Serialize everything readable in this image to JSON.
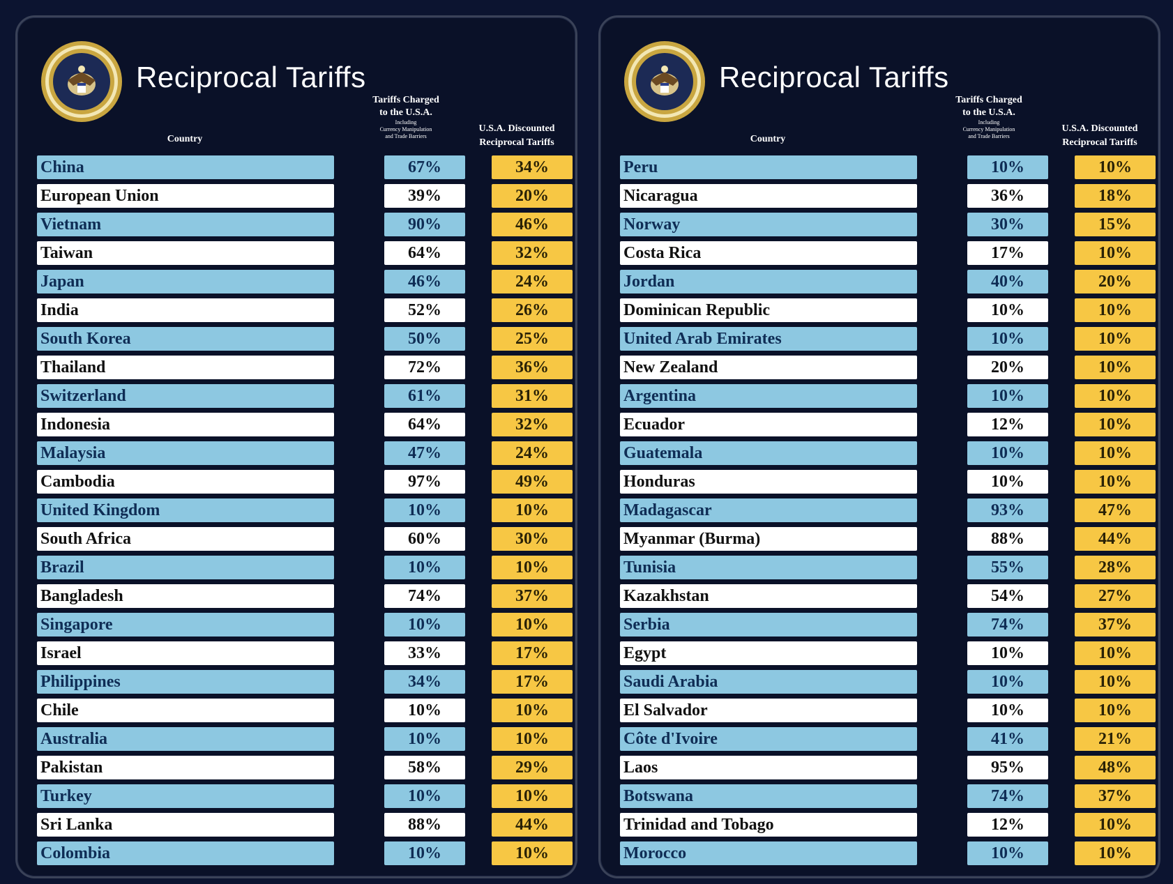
{
  "colors": {
    "background": "#0c1430",
    "row_blue": "#8dc8e1",
    "row_white": "#ffffff",
    "discount": "#f7c744"
  },
  "icons": {
    "seal": "presidential-seal-icon"
  },
  "panels": [
    {
      "title": "Reciprocal Tariffs",
      "headers": {
        "country": "Country",
        "charged_line1": "Tariffs Charged",
        "charged_line2": "to the U.S.A.",
        "charged_line3": "Including",
        "charged_line4": "Currency Manipulation",
        "charged_line5": "and Trade Barriers",
        "discount_line1": "U.S.A. Discounted",
        "discount_line2": "Reciprocal Tariffs"
      },
      "rows": [
        {
          "country": "China",
          "charged": "67%",
          "discounted": "34%"
        },
        {
          "country": "European Union",
          "charged": "39%",
          "discounted": "20%"
        },
        {
          "country": "Vietnam",
          "charged": "90%",
          "discounted": "46%"
        },
        {
          "country": "Taiwan",
          "charged": "64%",
          "discounted": "32%"
        },
        {
          "country": "Japan",
          "charged": "46%",
          "discounted": "24%"
        },
        {
          "country": "India",
          "charged": "52%",
          "discounted": "26%"
        },
        {
          "country": "South Korea",
          "charged": "50%",
          "discounted": "25%"
        },
        {
          "country": "Thailand",
          "charged": "72%",
          "discounted": "36%"
        },
        {
          "country": "Switzerland",
          "charged": "61%",
          "discounted": "31%"
        },
        {
          "country": "Indonesia",
          "charged": "64%",
          "discounted": "32%"
        },
        {
          "country": "Malaysia",
          "charged": "47%",
          "discounted": "24%"
        },
        {
          "country": "Cambodia",
          "charged": "97%",
          "discounted": "49%"
        },
        {
          "country": "United Kingdom",
          "charged": "10%",
          "discounted": "10%"
        },
        {
          "country": "South Africa",
          "charged": "60%",
          "discounted": "30%"
        },
        {
          "country": "Brazil",
          "charged": "10%",
          "discounted": "10%"
        },
        {
          "country": "Bangladesh",
          "charged": "74%",
          "discounted": "37%"
        },
        {
          "country": "Singapore",
          "charged": "10%",
          "discounted": "10%"
        },
        {
          "country": "Israel",
          "charged": "33%",
          "discounted": "17%"
        },
        {
          "country": "Philippines",
          "charged": "34%",
          "discounted": "17%"
        },
        {
          "country": "Chile",
          "charged": "10%",
          "discounted": "10%"
        },
        {
          "country": "Australia",
          "charged": "10%",
          "discounted": "10%"
        },
        {
          "country": "Pakistan",
          "charged": "58%",
          "discounted": "29%"
        },
        {
          "country": "Turkey",
          "charged": "10%",
          "discounted": "10%"
        },
        {
          "country": "Sri Lanka",
          "charged": "88%",
          "discounted": "44%"
        },
        {
          "country": "Colombia",
          "charged": "10%",
          "discounted": "10%"
        }
      ]
    },
    {
      "title": "Reciprocal Tariffs",
      "headers": {
        "country": "Country",
        "charged_line1": "Tariffs Charged",
        "charged_line2": "to the U.S.A.",
        "charged_line3": "Including",
        "charged_line4": "Currency Manipulation",
        "charged_line5": "and Trade Barriers",
        "discount_line1": "U.S.A. Discounted",
        "discount_line2": "Reciprocal Tariffs"
      },
      "rows": [
        {
          "country": "Peru",
          "charged": "10%",
          "discounted": "10%"
        },
        {
          "country": "Nicaragua",
          "charged": "36%",
          "discounted": "18%"
        },
        {
          "country": "Norway",
          "charged": "30%",
          "discounted": "15%"
        },
        {
          "country": "Costa Rica",
          "charged": "17%",
          "discounted": "10%"
        },
        {
          "country": "Jordan",
          "charged": "40%",
          "discounted": "20%"
        },
        {
          "country": "Dominican Republic",
          "charged": "10%",
          "discounted": "10%"
        },
        {
          "country": "United Arab Emirates",
          "charged": "10%",
          "discounted": "10%"
        },
        {
          "country": "New Zealand",
          "charged": "20%",
          "discounted": "10%"
        },
        {
          "country": "Argentina",
          "charged": "10%",
          "discounted": "10%"
        },
        {
          "country": "Ecuador",
          "charged": "12%",
          "discounted": "10%"
        },
        {
          "country": "Guatemala",
          "charged": "10%",
          "discounted": "10%"
        },
        {
          "country": "Honduras",
          "charged": "10%",
          "discounted": "10%"
        },
        {
          "country": "Madagascar",
          "charged": "93%",
          "discounted": "47%"
        },
        {
          "country": "Myanmar (Burma)",
          "charged": "88%",
          "discounted": "44%"
        },
        {
          "country": "Tunisia",
          "charged": "55%",
          "discounted": "28%"
        },
        {
          "country": "Kazakhstan",
          "charged": "54%",
          "discounted": "27%"
        },
        {
          "country": "Serbia",
          "charged": "74%",
          "discounted": "37%"
        },
        {
          "country": "Egypt",
          "charged": "10%",
          "discounted": "10%"
        },
        {
          "country": "Saudi Arabia",
          "charged": "10%",
          "discounted": "10%"
        },
        {
          "country": "El Salvador",
          "charged": "10%",
          "discounted": "10%"
        },
        {
          "country": "Côte d'Ivoire",
          "charged": "41%",
          "discounted": "21%"
        },
        {
          "country": "Laos",
          "charged": "95%",
          "discounted": "48%"
        },
        {
          "country": "Botswana",
          "charged": "74%",
          "discounted": "37%"
        },
        {
          "country": "Trinidad and Tobago",
          "charged": "12%",
          "discounted": "10%"
        },
        {
          "country": "Morocco",
          "charged": "10%",
          "discounted": "10%"
        }
      ]
    }
  ]
}
